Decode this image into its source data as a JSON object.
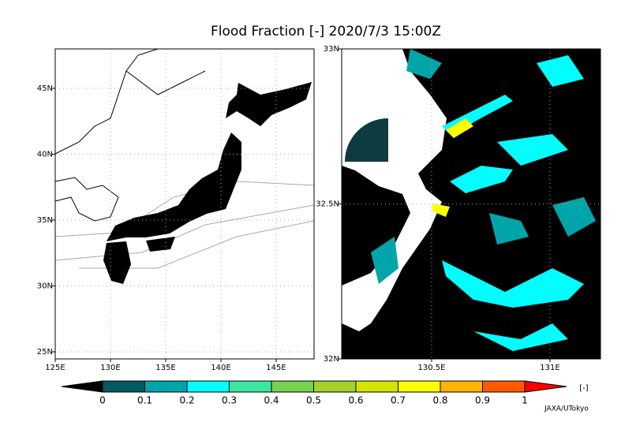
{
  "title": "Flood Fraction [-] 2020/7/3 15:00Z",
  "left_map": {
    "xticks": [
      "125E",
      "130E",
      "135E",
      "140E",
      "145E"
    ],
    "yticks": [
      "45N",
      "40N",
      "35N",
      "30N",
      "25N"
    ]
  },
  "right_map": {
    "xticks": [
      "130.5E",
      "131E"
    ],
    "yticks": [
      "33N",
      "32.5N",
      "32N"
    ]
  },
  "colorbar": {
    "ticks": [
      0,
      0.1,
      0.2,
      0.3,
      0.4,
      0.5,
      0.6,
      0.7,
      0.8,
      0.9,
      1
    ],
    "colors": [
      "#000000",
      "#005a5f",
      "#00a5aa",
      "#00ffff",
      "#3ce6a0",
      "#78d250",
      "#a5d228",
      "#d2e600",
      "#ffff00",
      "#ffb400",
      "#ff5a00",
      "#ff0000"
    ],
    "unit": "[-]"
  },
  "credit": "JAXA/UTokyo"
}
